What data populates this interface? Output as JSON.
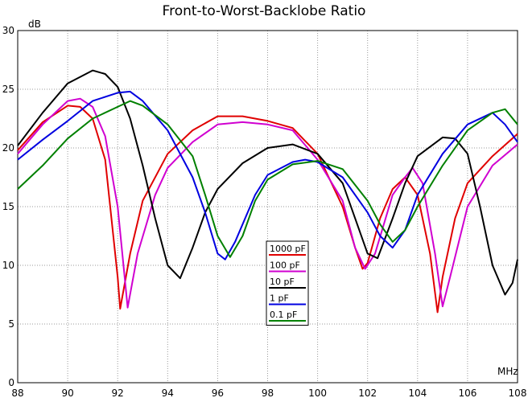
{
  "chart_data": {
    "type": "line",
    "title": "Front-to-Worst-Backlobe Ratio",
    "x_label": "MHz",
    "y_label": "dB",
    "xlim": [
      88,
      108
    ],
    "xticks": [
      88,
      90,
      92,
      94,
      96,
      98,
      100,
      102,
      104,
      106,
      108
    ],
    "ylim": [
      0,
      30
    ],
    "yticks": [
      0,
      5,
      10,
      15,
      20,
      25,
      30
    ],
    "grid": true,
    "series": [
      {
        "name": "1000 pF",
        "color": "#e00000",
        "x": [
          88,
          89,
          90,
          90.5,
          91,
          91.5,
          92,
          92.1,
          92.5,
          93,
          94,
          95,
          96,
          97,
          98,
          99,
          100,
          101,
          101.5,
          101.8,
          102,
          102.5,
          103,
          103.5,
          104,
          104.5,
          104.8,
          105,
          105.5,
          106,
          107,
          108
        ],
        "values": [
          19.8,
          22.2,
          23.6,
          23.5,
          22.5,
          19,
          9,
          6.3,
          11,
          15.5,
          19.5,
          21.5,
          22.7,
          22.7,
          22.3,
          21.7,
          19.5,
          15,
          11.5,
          9.7,
          10.2,
          14,
          16.5,
          17.5,
          16,
          11,
          6,
          9,
          14,
          17,
          19.3,
          21.2
        ]
      },
      {
        "name": "100 pF",
        "color": "#d000d0",
        "x": [
          88,
          89,
          90,
          90.5,
          91,
          91.5,
          92,
          92.4,
          92.8,
          93.5,
          94,
          95,
          96,
          97,
          98,
          99,
          100,
          101,
          101.5,
          101.9,
          102.3,
          103,
          103.5,
          103.8,
          104.2,
          104.7,
          105,
          105.3,
          106,
          107,
          108
        ],
        "values": [
          19.5,
          22,
          24,
          24.2,
          23.5,
          21,
          15,
          6.4,
          11,
          16,
          18.3,
          20.5,
          22,
          22.2,
          22,
          21.5,
          19,
          15.5,
          11.5,
          9.7,
          11,
          16,
          17.5,
          18.3,
          17,
          11,
          6.5,
          9,
          15,
          18.5,
          20.3
        ]
      },
      {
        "name": "10 pF",
        "color": "#000000",
        "x": [
          88,
          89,
          90,
          91,
          91.5,
          92,
          92.5,
          93,
          93.5,
          94,
          94.5,
          95,
          95.5,
          96,
          97,
          98,
          99,
          100,
          101,
          101.5,
          102,
          102.4,
          103,
          103.5,
          104,
          105,
          105.5,
          106,
          106.5,
          107,
          107.5,
          107.8,
          108
        ],
        "values": [
          20.2,
          23,
          25.5,
          26.6,
          26.3,
          25.2,
          22.5,
          18.5,
          14,
          10,
          8.9,
          11.5,
          14.5,
          16.5,
          18.7,
          20,
          20.3,
          19.5,
          17,
          14,
          11,
          10.6,
          14,
          17,
          19.3,
          20.9,
          20.8,
          19.5,
          15,
          10,
          7.5,
          8.5,
          10.5
        ]
      },
      {
        "name": "1 pF",
        "color": "#0000e0",
        "x": [
          88,
          89,
          90,
          91,
          92,
          92.5,
          93,
          94,
          95,
          95.5,
          96,
          96.3,
          96.7,
          97.5,
          98,
          99,
          99.5,
          100,
          101,
          102,
          102.5,
          103,
          103.5,
          104,
          105,
          106,
          107,
          107.5,
          108
        ],
        "values": [
          19,
          20.7,
          22.3,
          24,
          24.7,
          24.8,
          24,
          21.5,
          17.5,
          14.5,
          11,
          10.5,
          12,
          16,
          17.7,
          18.8,
          19,
          18.8,
          17.5,
          14.5,
          12.5,
          11.5,
          13,
          16,
          19.5,
          22,
          23,
          22,
          20.5
        ]
      },
      {
        "name": "0.1 pF",
        "color": "#008000",
        "x": [
          88,
          89,
          90,
          91,
          92,
          92.5,
          93,
          94,
          95,
          95.5,
          96,
          96.5,
          97,
          97.5,
          98,
          99,
          100,
          101,
          102,
          102.5,
          103,
          103.5,
          104,
          105,
          106,
          107,
          107.5,
          108
        ],
        "values": [
          16.5,
          18.5,
          20.8,
          22.5,
          23.5,
          24,
          23.6,
          22,
          19.3,
          16,
          12.5,
          10.7,
          12.5,
          15.5,
          17.3,
          18.6,
          18.9,
          18.2,
          15.5,
          13.5,
          12,
          13,
          15,
          18.5,
          21.5,
          23,
          23.3,
          22
        ]
      }
    ]
  }
}
